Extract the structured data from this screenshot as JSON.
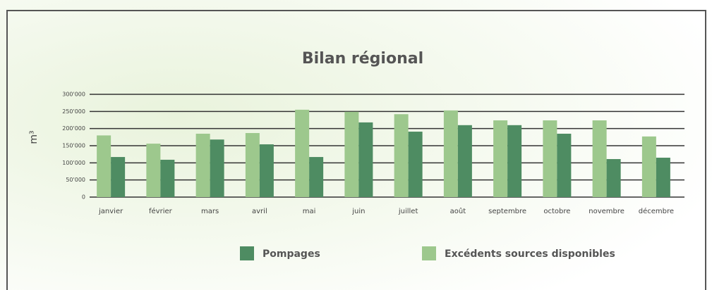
{
  "chart_data": {
    "type": "bar",
    "title": "Bilan régional",
    "y_label": "m³",
    "categories": [
      "janvier",
      "février",
      "mars",
      "avril",
      "mai",
      "juin",
      "juillet",
      "août",
      "septembre",
      "octobre",
      "novembre",
      "décembre"
    ],
    "series": [
      {
        "name": "Excédents sources disponibles",
        "color": "#9dc88d",
        "values": [
          180000,
          156000,
          185000,
          187000,
          255000,
          249000,
          242000,
          253000,
          224000,
          224000,
          224000,
          177000
        ]
      },
      {
        "name": "Pompages",
        "color": "#4e8c62",
        "values": [
          117000,
          109000,
          168000,
          154000,
          117000,
          218000,
          191000,
          210000,
          210000,
          185000,
          111000,
          115000
        ]
      }
    ],
    "ylim": [
      0,
      300000
    ],
    "yticks": [
      {
        "value": 0,
        "label": "0"
      },
      {
        "value": 50000,
        "label": "50'000"
      },
      {
        "value": 100000,
        "label": "100'000"
      },
      {
        "value": 150000,
        "label": "150'000"
      },
      {
        "value": 200000,
        "label": "200'000"
      },
      {
        "value": 250000,
        "label": "250'000"
      },
      {
        "value": 300000,
        "label": "300'000"
      }
    ],
    "grid": true
  }
}
